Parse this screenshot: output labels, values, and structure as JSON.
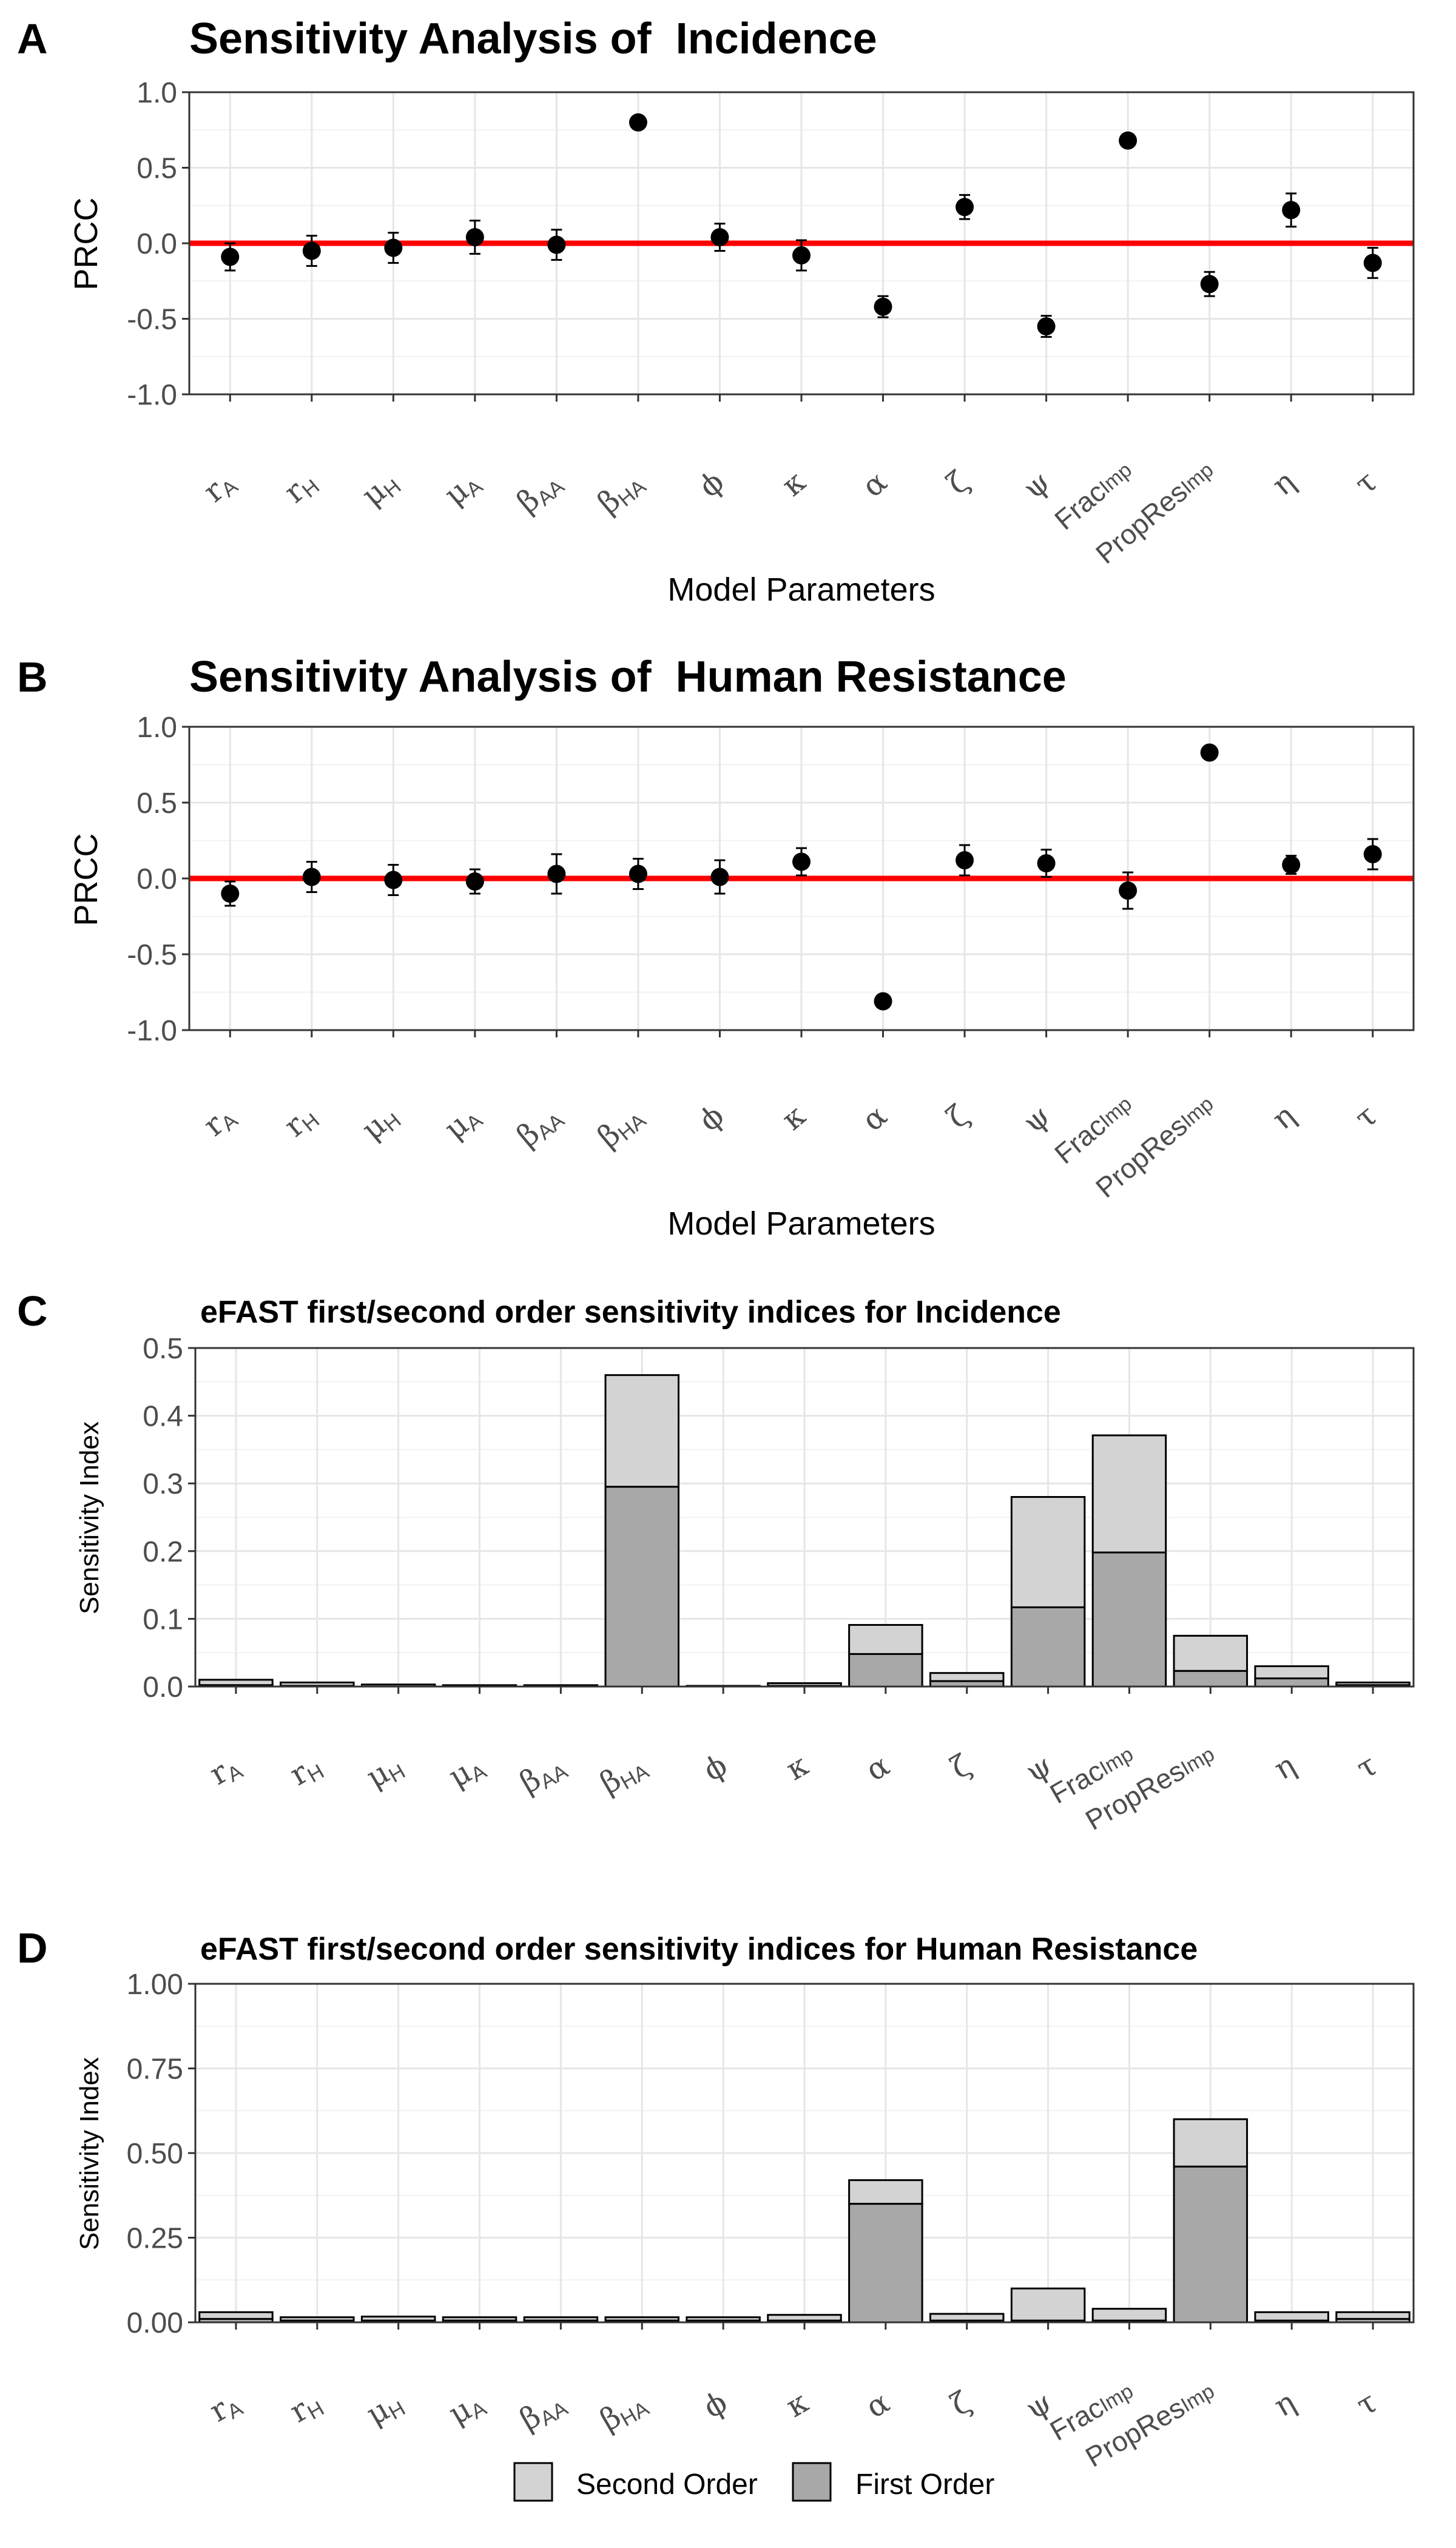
{
  "figure": {
    "panel_letters": [
      "A",
      "B",
      "C",
      "D"
    ],
    "legend": [
      {
        "label": "Second Order",
        "color": "#d3d3d3"
      },
      {
        "label": "First Order",
        "color": "#a8a8a8"
      }
    ]
  },
  "chart_data": [
    {
      "type": "scatter",
      "title": "Sensitivity Analysis of  Incidence",
      "xlabel": "Model Parameters",
      "ylabel": "PRCC",
      "ylim": [
        -1.0,
        1.0
      ],
      "yticks": [
        "-1.0",
        "-0.5",
        "0.0",
        "0.5",
        "1.0"
      ],
      "grid": true,
      "reference_line": {
        "y": 0,
        "color": "#ff0000"
      },
      "categories": [
        {
          "sym": "r",
          "sub": "A",
          "font": "serif"
        },
        {
          "sym": "r",
          "sub": "H",
          "font": "serif"
        },
        {
          "sym": "μ",
          "sub": "H",
          "font": "serif"
        },
        {
          "sym": "μ",
          "sub": "A",
          "font": "serif"
        },
        {
          "sym": "β",
          "sub": "AA",
          "font": "serif"
        },
        {
          "sym": "β",
          "sub": "HA",
          "font": "serif"
        },
        {
          "sym": "ϕ",
          "sub": "",
          "font": "serif"
        },
        {
          "sym": "κ",
          "sub": "",
          "font": "serif"
        },
        {
          "sym": "α",
          "sub": "",
          "font": "serif"
        },
        {
          "sym": "ζ",
          "sub": "",
          "font": "serif"
        },
        {
          "sym": "ψ",
          "sub": "",
          "font": "serif"
        },
        {
          "sym": "Frac",
          "sub": "Imp",
          "font": "sans"
        },
        {
          "sym": "PropRes",
          "sub": "Imp",
          "font": "sans"
        },
        {
          "sym": "η",
          "sub": "",
          "font": "serif"
        },
        {
          "sym": "τ",
          "sub": "",
          "font": "serif"
        }
      ],
      "values": [
        -0.09,
        -0.05,
        -0.03,
        0.04,
        -0.01,
        0.8,
        0.04,
        -0.08,
        -0.42,
        0.24,
        -0.55,
        0.68,
        -0.27,
        0.22,
        -0.13
      ],
      "error": [
        0.09,
        0.1,
        0.1,
        0.11,
        0.1,
        0.0,
        0.09,
        0.1,
        0.07,
        0.08,
        0.07,
        0.0,
        0.08,
        0.11,
        0.1
      ]
    },
    {
      "type": "scatter",
      "title": "Sensitivity Analysis of  Human Resistance",
      "xlabel": "Model Parameters",
      "ylabel": "PRCC",
      "ylim": [
        -1.0,
        1.0
      ],
      "yticks": [
        "-1.0",
        "-0.5",
        "0.0",
        "0.5",
        "1.0"
      ],
      "grid": true,
      "reference_line": {
        "y": 0,
        "color": "#ff0000"
      },
      "categories": [
        {
          "sym": "r",
          "sub": "A",
          "font": "serif"
        },
        {
          "sym": "r",
          "sub": "H",
          "font": "serif"
        },
        {
          "sym": "μ",
          "sub": "H",
          "font": "serif"
        },
        {
          "sym": "μ",
          "sub": "A",
          "font": "serif"
        },
        {
          "sym": "β",
          "sub": "AA",
          "font": "serif"
        },
        {
          "sym": "β",
          "sub": "HA",
          "font": "serif"
        },
        {
          "sym": "ϕ",
          "sub": "",
          "font": "serif"
        },
        {
          "sym": "κ",
          "sub": "",
          "font": "serif"
        },
        {
          "sym": "α",
          "sub": "",
          "font": "serif"
        },
        {
          "sym": "ζ",
          "sub": "",
          "font": "serif"
        },
        {
          "sym": "ψ",
          "sub": "",
          "font": "serif"
        },
        {
          "sym": "Frac",
          "sub": "Imp",
          "font": "sans"
        },
        {
          "sym": "PropRes",
          "sub": "Imp",
          "font": "sans"
        },
        {
          "sym": "η",
          "sub": "",
          "font": "serif"
        },
        {
          "sym": "τ",
          "sub": "",
          "font": "serif"
        }
      ],
      "values": [
        -0.1,
        0.01,
        -0.01,
        -0.02,
        0.03,
        0.03,
        0.01,
        0.11,
        -0.81,
        0.12,
        0.1,
        -0.08,
        0.83,
        0.09,
        0.16
      ],
      "error": [
        0.08,
        0.1,
        0.1,
        0.08,
        0.13,
        0.1,
        0.11,
        0.09,
        0.0,
        0.1,
        0.09,
        0.12,
        0.0,
        0.06,
        0.1
      ]
    },
    {
      "type": "bar",
      "title": "eFAST first/second order sensitivity indices for Incidence",
      "xlabel": "",
      "ylabel": "Sensitivity Index",
      "ylim": [
        0,
        0.5
      ],
      "yticks": [
        "0.0",
        "0.1",
        "0.2",
        "0.3",
        "0.4",
        "0.5"
      ],
      "grid": true,
      "stacked": true,
      "categories": [
        {
          "sym": "r",
          "sub": "A",
          "font": "serif"
        },
        {
          "sym": "r",
          "sub": "H",
          "font": "serif"
        },
        {
          "sym": "μ",
          "sub": "H",
          "font": "serif"
        },
        {
          "sym": "μ",
          "sub": "A",
          "font": "serif"
        },
        {
          "sym": "β",
          "sub": "AA",
          "font": "serif"
        },
        {
          "sym": "β",
          "sub": "HA",
          "font": "serif"
        },
        {
          "sym": "ϕ",
          "sub": "",
          "font": "serif"
        },
        {
          "sym": "κ",
          "sub": "",
          "font": "serif"
        },
        {
          "sym": "α",
          "sub": "",
          "font": "serif"
        },
        {
          "sym": "ζ",
          "sub": "",
          "font": "serif"
        },
        {
          "sym": "ψ",
          "sub": "",
          "font": "serif"
        },
        {
          "sym": "Frac",
          "sub": "Imp",
          "font": "sans"
        },
        {
          "sym": "PropRes",
          "sub": "Imp",
          "font": "sans"
        },
        {
          "sym": "η",
          "sub": "",
          "font": "serif"
        },
        {
          "sym": "τ",
          "sub": "",
          "font": "serif"
        }
      ],
      "series": [
        {
          "name": "First Order",
          "values": [
            0.002,
            0.001,
            0.0,
            0.0,
            0.0,
            0.295,
            0.0,
            0.001,
            0.048,
            0.008,
            0.117,
            0.198,
            0.023,
            0.012,
            0.002
          ]
        },
        {
          "name": "Second Order",
          "values": [
            0.008,
            0.005,
            0.003,
            0.002,
            0.002,
            0.165,
            0.001,
            0.004,
            0.043,
            0.012,
            0.163,
            0.173,
            0.052,
            0.018,
            0.004
          ]
        }
      ]
    },
    {
      "type": "bar",
      "title": "eFAST first/second order sensitivity indices for Human Resistance",
      "xlabel": "",
      "ylabel": "Sensitivity Index",
      "ylim": [
        0,
        1.0
      ],
      "yticks": [
        "0.00",
        "0.25",
        "0.50",
        "0.75",
        "1.00"
      ],
      "grid": true,
      "stacked": true,
      "categories": [
        {
          "sym": "r",
          "sub": "A",
          "font": "serif"
        },
        {
          "sym": "r",
          "sub": "H",
          "font": "serif"
        },
        {
          "sym": "μ",
          "sub": "H",
          "font": "serif"
        },
        {
          "sym": "μ",
          "sub": "A",
          "font": "serif"
        },
        {
          "sym": "β",
          "sub": "AA",
          "font": "serif"
        },
        {
          "sym": "β",
          "sub": "HA",
          "font": "serif"
        },
        {
          "sym": "ϕ",
          "sub": "",
          "font": "serif"
        },
        {
          "sym": "κ",
          "sub": "",
          "font": "serif"
        },
        {
          "sym": "α",
          "sub": "",
          "font": "serif"
        },
        {
          "sym": "ζ",
          "sub": "",
          "font": "serif"
        },
        {
          "sym": "ψ",
          "sub": "",
          "font": "serif"
        },
        {
          "sym": "Frac",
          "sub": "Imp",
          "font": "sans"
        },
        {
          "sym": "PropRes",
          "sub": "Imp",
          "font": "sans"
        },
        {
          "sym": "η",
          "sub": "",
          "font": "serif"
        },
        {
          "sym": "τ",
          "sub": "",
          "font": "serif"
        }
      ],
      "series": [
        {
          "name": "First Order",
          "values": [
            0.01,
            0.005,
            0.005,
            0.005,
            0.005,
            0.005,
            0.005,
            0.005,
            0.35,
            0.005,
            0.005,
            0.005,
            0.46,
            0.005,
            0.01
          ]
        },
        {
          "name": "Second Order",
          "values": [
            0.02,
            0.01,
            0.012,
            0.01,
            0.01,
            0.01,
            0.01,
            0.017,
            0.07,
            0.02,
            0.095,
            0.035,
            0.14,
            0.025,
            0.02
          ]
        }
      ]
    }
  ]
}
